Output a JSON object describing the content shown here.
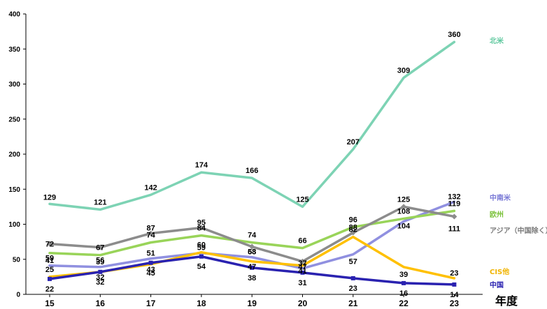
{
  "chart_data": {
    "type": "line",
    "title": "",
    "xlabel": "年度",
    "ylabel": "",
    "ylim": [
      0,
      400
    ],
    "yticks": [
      0,
      50,
      100,
      150,
      200,
      250,
      300,
      350,
      400
    ],
    "grid": false,
    "legend": "right",
    "categories": [
      "15",
      "16",
      "17",
      "18",
      "19",
      "20",
      "21",
      "22",
      "23"
    ],
    "series": [
      {
        "name": "北米",
        "color": "#7dd3b4",
        "marker": "none",
        "values": [
          129,
          121,
          142,
          174,
          166,
          125,
          207,
          309,
          360
        ],
        "labels": [
          "129",
          "121",
          "142",
          "174",
          "166",
          "125",
          "207",
          "309",
          "360"
        ]
      },
      {
        "name": "中南米",
        "color": "#9090e0",
        "marker": "none",
        "values": [
          41,
          39,
          51,
          59,
          53,
          37,
          57,
          104,
          132
        ],
        "labels": [
          "41",
          "39",
          "51",
          "59",
          "53",
          "37",
          "57",
          "104",
          "132"
        ]
      },
      {
        "name": "欧州",
        "color": "#99d459",
        "marker": "none",
        "values": [
          59,
          56,
          74,
          84,
          74,
          66,
          96,
          108,
          119
        ],
        "labels": [
          "59",
          "56",
          "74",
          "84",
          "74",
          "66",
          "96",
          "108",
          "119"
        ]
      },
      {
        "name": "アジア（中国除く）",
        "color": "#8c8c8c",
        "marker": "diamond",
        "values": [
          72,
          67,
          87,
          95,
          68,
          47,
          88,
          125,
          111
        ],
        "labels": [
          "72",
          "67",
          "87",
          "95",
          "68",
          "47",
          "88",
          "125",
          "111"
        ]
      },
      {
        "name": "CIS他",
        "color": "#ffc000",
        "marker": "none",
        "values": [
          25,
          32,
          43,
          60,
          47,
          41,
          82,
          39,
          23
        ],
        "labels": [
          "25",
          "32",
          "43",
          "60",
          "47",
          "41",
          "82",
          "39",
          "23"
        ]
      },
      {
        "name": "中国",
        "color": "#2a22b0",
        "marker": "square",
        "values": [
          22,
          32,
          45,
          54,
          38,
          31,
          23,
          16,
          14
        ],
        "labels": [
          "22",
          "32",
          "45",
          "54",
          "38",
          "31",
          "23",
          "16",
          "14"
        ]
      }
    ]
  }
}
